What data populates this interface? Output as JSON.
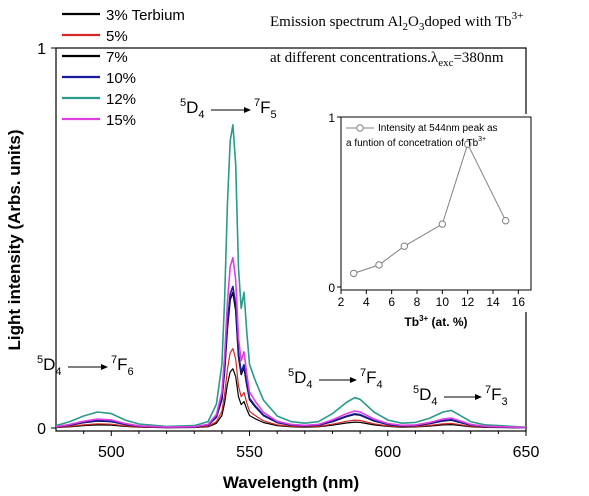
{
  "chart_data": [
    {
      "type": "line",
      "title_line1": "Emission spectrum Al",
      "title_sub1": "2",
      "title_mid1": "O",
      "title_sub2": "3",
      "title_mid2": "doped with Tb",
      "title_sup1": "3+",
      "title_line2": "at different concentrations.",
      "title_lambda": "λ",
      "title_lambda_sub": "exc",
      "title_tail": "=380nm",
      "xlabel": "Wavelength (nm)",
      "ylabel": "Light intensity (Arbs. units)",
      "xlim": [
        480,
        650
      ],
      "ylim": [
        0,
        1
      ],
      "xticks": [
        500,
        550,
        600,
        650
      ],
      "yticks": [
        {
          "value": 0,
          "label": "0"
        },
        {
          "value": 1,
          "label": "1"
        }
      ],
      "legend_position": "top-left",
      "series": [
        {
          "name": "3% Terbium",
          "color": "#000000",
          "scale": 0.41,
          "width": 1.2
        },
        {
          "name": "5%",
          "color": "#d62728",
          "scale": 0.55,
          "width": 1.2
        },
        {
          "name": "7%",
          "color": "#000000",
          "scale": 0.94,
          "width": 1.6
        },
        {
          "name": "10%",
          "color": "#1a1a9c",
          "scale": 0.98,
          "width": 1.6
        },
        {
          "name": "12%",
          "color": "#2a9a8a",
          "scale": 2.1,
          "width": 1.6
        },
        {
          "name": "15%",
          "color": "#e040e0",
          "scale": 1.18,
          "width": 1.6
        }
      ],
      "peak_profile": {
        "x": [
          480,
          485,
          490,
          495,
          500,
          505,
          510,
          520,
          530,
          535,
          538,
          540,
          541,
          542,
          543,
          544,
          545,
          546,
          547,
          548,
          549,
          550,
          552,
          555,
          560,
          565,
          570,
          575,
          580,
          585,
          588,
          590,
          595,
          600,
          605,
          610,
          615,
          620,
          623,
          625,
          630,
          635,
          640,
          645,
          650
        ],
        "y": [
          0.003,
          0.008,
          0.015,
          0.02,
          0.018,
          0.01,
          0.005,
          0.002,
          0.003,
          0.008,
          0.03,
          0.08,
          0.16,
          0.28,
          0.36,
          0.38,
          0.33,
          0.2,
          0.15,
          0.17,
          0.12,
          0.08,
          0.06,
          0.035,
          0.015,
          0.008,
          0.006,
          0.008,
          0.018,
          0.032,
          0.038,
          0.036,
          0.02,
          0.01,
          0.006,
          0.007,
          0.012,
          0.02,
          0.022,
          0.018,
          0.008,
          0.004,
          0.003,
          0.002,
          0.001
        ]
      },
      "annotations": [
        {
          "main": "D",
          "pre": "5",
          "sub": "4",
          "arrow": "→",
          "sup": "7",
          "end": "F",
          "sub2": "5"
        },
        {
          "main": "D",
          "pre": "5",
          "sub": "4",
          "arrow": "→",
          "sup": "7",
          "end": "F",
          "sub2": "6"
        },
        {
          "main": "D",
          "pre": "5",
          "sub": "4",
          "arrow": "→",
          "sup": "7",
          "end": "F",
          "sub2": "4"
        },
        {
          "main": "D",
          "pre": "5",
          "sub": "4",
          "arrow": "→",
          "sup": "7",
          "end": "F",
          "sub2": "3"
        }
      ]
    },
    {
      "type": "line",
      "legend_line1": "Intensity at 544nm peak as",
      "legend_line2": "a funtion of concetration of Tb",
      "legend_sup": "3+",
      "xlabel_main": "Tb",
      "xlabel_sup": "3+",
      "xlabel_tail": " (at. %)",
      "xlim": [
        2,
        17
      ],
      "ylim": [
        0,
        1
      ],
      "xticks": [
        2,
        4,
        6,
        8,
        10,
        12,
        14,
        16
      ],
      "yticks": [
        {
          "value": 0,
          "label": "0"
        },
        {
          "value": 1,
          "label": "1"
        }
      ],
      "x": [
        3,
        5,
        7,
        10,
        12,
        15
      ],
      "y": [
        0.08,
        0.13,
        0.24,
        0.37,
        0.84,
        0.39
      ],
      "color": "#808080"
    }
  ]
}
